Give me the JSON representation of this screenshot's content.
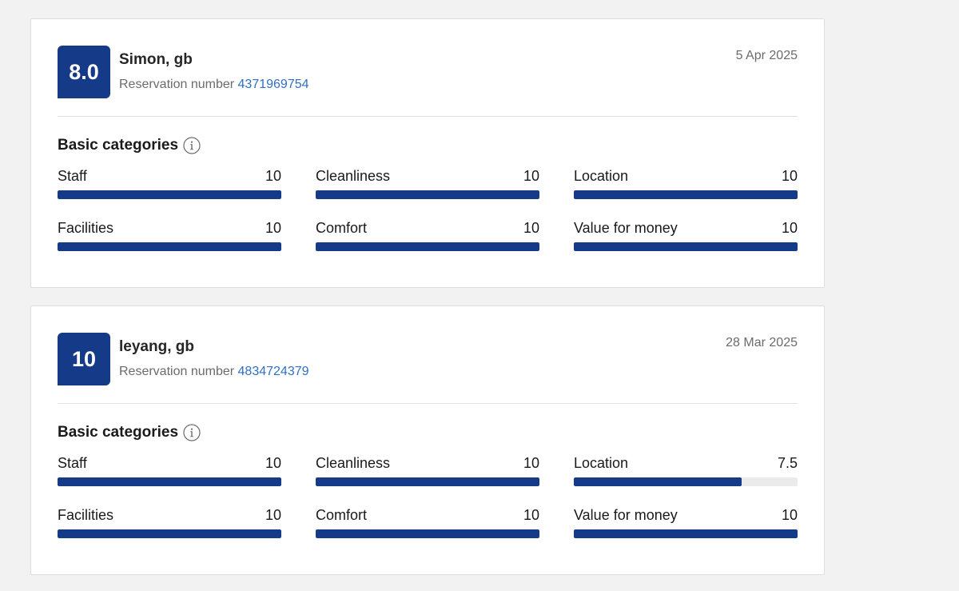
{
  "reviews": [
    {
      "score": "8.0",
      "name": "Simon, gb",
      "reservation_label": "Reservation number",
      "reservation_number": "4371969754",
      "date": "5 Apr 2025",
      "categories_heading": "Basic categories",
      "categories": [
        {
          "label": "Staff",
          "value": "10",
          "fill": 1.0
        },
        {
          "label": "Cleanliness",
          "value": "10",
          "fill": 1.0
        },
        {
          "label": "Location",
          "value": "10",
          "fill": 1.0
        },
        {
          "label": "Facilities",
          "value": "10",
          "fill": 1.0
        },
        {
          "label": "Comfort",
          "value": "10",
          "fill": 1.0
        },
        {
          "label": "Value for money",
          "value": "10",
          "fill": 1.0
        }
      ]
    },
    {
      "score": "10",
      "name": "leyang, gb",
      "reservation_label": "Reservation number",
      "reservation_number": "4834724379",
      "date": "28 Mar 2025",
      "categories_heading": "Basic categories",
      "categories": [
        {
          "label": "Staff",
          "value": "10",
          "fill": 1.0
        },
        {
          "label": "Cleanliness",
          "value": "10",
          "fill": 1.0
        },
        {
          "label": "Location",
          "value": "7.5",
          "fill": 0.75
        },
        {
          "label": "Facilities",
          "value": "10",
          "fill": 1.0
        },
        {
          "label": "Comfort",
          "value": "10",
          "fill": 1.0
        },
        {
          "label": "Value for money",
          "value": "10",
          "fill": 1.0
        }
      ]
    }
  ],
  "colors": {
    "accent": "#143a88",
    "link": "#2f6fc4",
    "muted_text": "#6b6b6b",
    "page_background": "#f2f2f2"
  },
  "icons": {
    "info": "info-icon"
  }
}
